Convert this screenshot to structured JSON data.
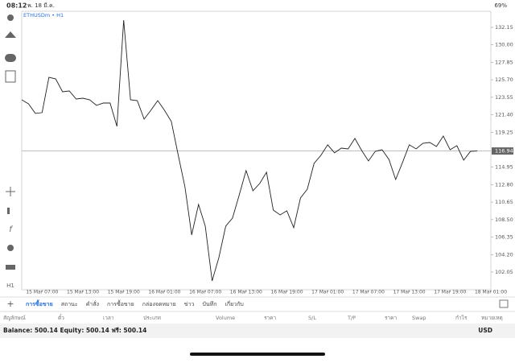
{
  "status_bar": {
    "time": "08:12",
    "date": "พ. 18 มี.ค.",
    "battery": "69%"
  },
  "chart_data": {
    "type": "line",
    "title": "ETHUSDm • H1",
    "series": [
      {
        "name": "ETHUSDm",
        "color": "#222222",
        "values": [
          123.24,
          122.74,
          121.56,
          121.66,
          126.01,
          125.81,
          124.23,
          124.33,
          123.34,
          123.44,
          123.24,
          122.55,
          122.84,
          122.84,
          119.97,
          133.04,
          123.24,
          123.14,
          120.86,
          121.95,
          123.14,
          121.95,
          120.57,
          116.51,
          112.55,
          106.61,
          110.37,
          107.69,
          100.96,
          103.83,
          107.69,
          108.68,
          111.56,
          114.53,
          112.05,
          112.94,
          114.33,
          109.67,
          109.08,
          109.58,
          107.5,
          111.16,
          112.25,
          115.42,
          116.41,
          117.7,
          116.71,
          117.3,
          117.2,
          118.49,
          117.0,
          115.71,
          116.9,
          117.1,
          115.91,
          113.44,
          115.52,
          117.7,
          117.2,
          117.89,
          117.99,
          117.5,
          118.78,
          117.1,
          117.59,
          115.81,
          116.9,
          116.94
        ]
      }
    ],
    "xlim": [
      0,
      69
    ],
    "xticks": [
      {
        "value": 3,
        "label": "15 Mar 07:00"
      },
      {
        "value": 9,
        "label": "15 Mar 13:00"
      },
      {
        "value": 15,
        "label": "15 Mar 19:00"
      },
      {
        "value": 21,
        "label": "16 Mar 01:00"
      },
      {
        "value": 27,
        "label": "16 Mar 07:00"
      },
      {
        "value": 33,
        "label": "16 Mar 13:00"
      },
      {
        "value": 39,
        "label": "16 Mar 19:00"
      },
      {
        "value": 45,
        "label": "17 Mar 01:00"
      },
      {
        "value": 51,
        "label": "17 Mar 07:00"
      },
      {
        "value": 57,
        "label": "17 Mar 13:00"
      },
      {
        "value": 63,
        "label": "17 Mar 19:00"
      },
      {
        "value": 69,
        "label": "18 Mar 01:00"
      }
    ],
    "ylim": [
      99.87,
      134.13
    ],
    "yticks": [
      132.15,
      {
        "value": 130,
        "label": "130.00"
      },
      127.85,
      {
        "value": 125.7,
        "label": "125.70"
      },
      123.55,
      {
        "value": 121.4,
        "label": "121.40"
      },
      119.25,
      114.95,
      {
        "value": 112.8,
        "label": "112.80"
      },
      110.65,
      {
        "value": 108.5,
        "label": "108.50"
      },
      106.35,
      {
        "value": 104.2,
        "label": "104.20"
      },
      102.05
    ],
    "current_price": 116.94
  },
  "tabs": [
    "การซื้อขาย",
    "สถานะ",
    "คำสั่ง",
    "การซื้อขาย",
    "กล่องจดหมาย",
    "ข่าว",
    "บันทึก",
    "เกี่ยวกับ"
  ],
  "table": {
    "headers": [
      "สัญลักษณ์",
      "ตั๋ว",
      "เวลา",
      "ประเภท",
      "Volume",
      "ราคา",
      "S/L",
      "T/P",
      "ราคา",
      "Swap",
      "กำไร",
      "หมายเหตุ"
    ]
  },
  "account": {
    "summary": "Balance: 500.14 Equity: 500.14 ฟรี: 500.14",
    "currency": "USD"
  }
}
